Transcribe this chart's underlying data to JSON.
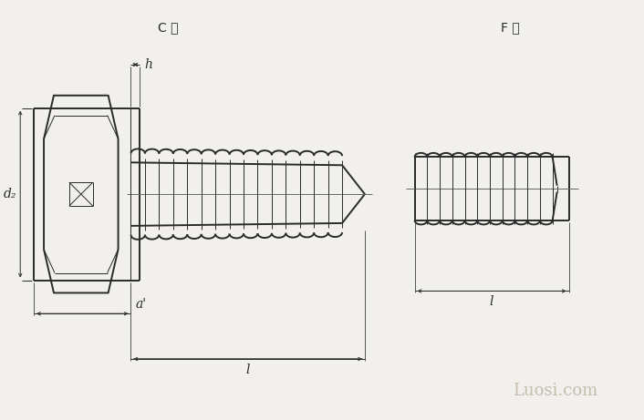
{
  "bg_color": "#f2f0ec",
  "line_color": "#2a2a2a",
  "title_C": "C 型",
  "title_F": "F 型",
  "watermark": "Luosi.com",
  "label_h": "h",
  "label_d2": "d₂",
  "label_a": "a'",
  "label_l": "l",
  "figsize": [
    7.06,
    4.61
  ],
  "dpi": 100,
  "lw_main": 1.4,
  "lw_thin": 0.7,
  "lw_dim": 0.7
}
